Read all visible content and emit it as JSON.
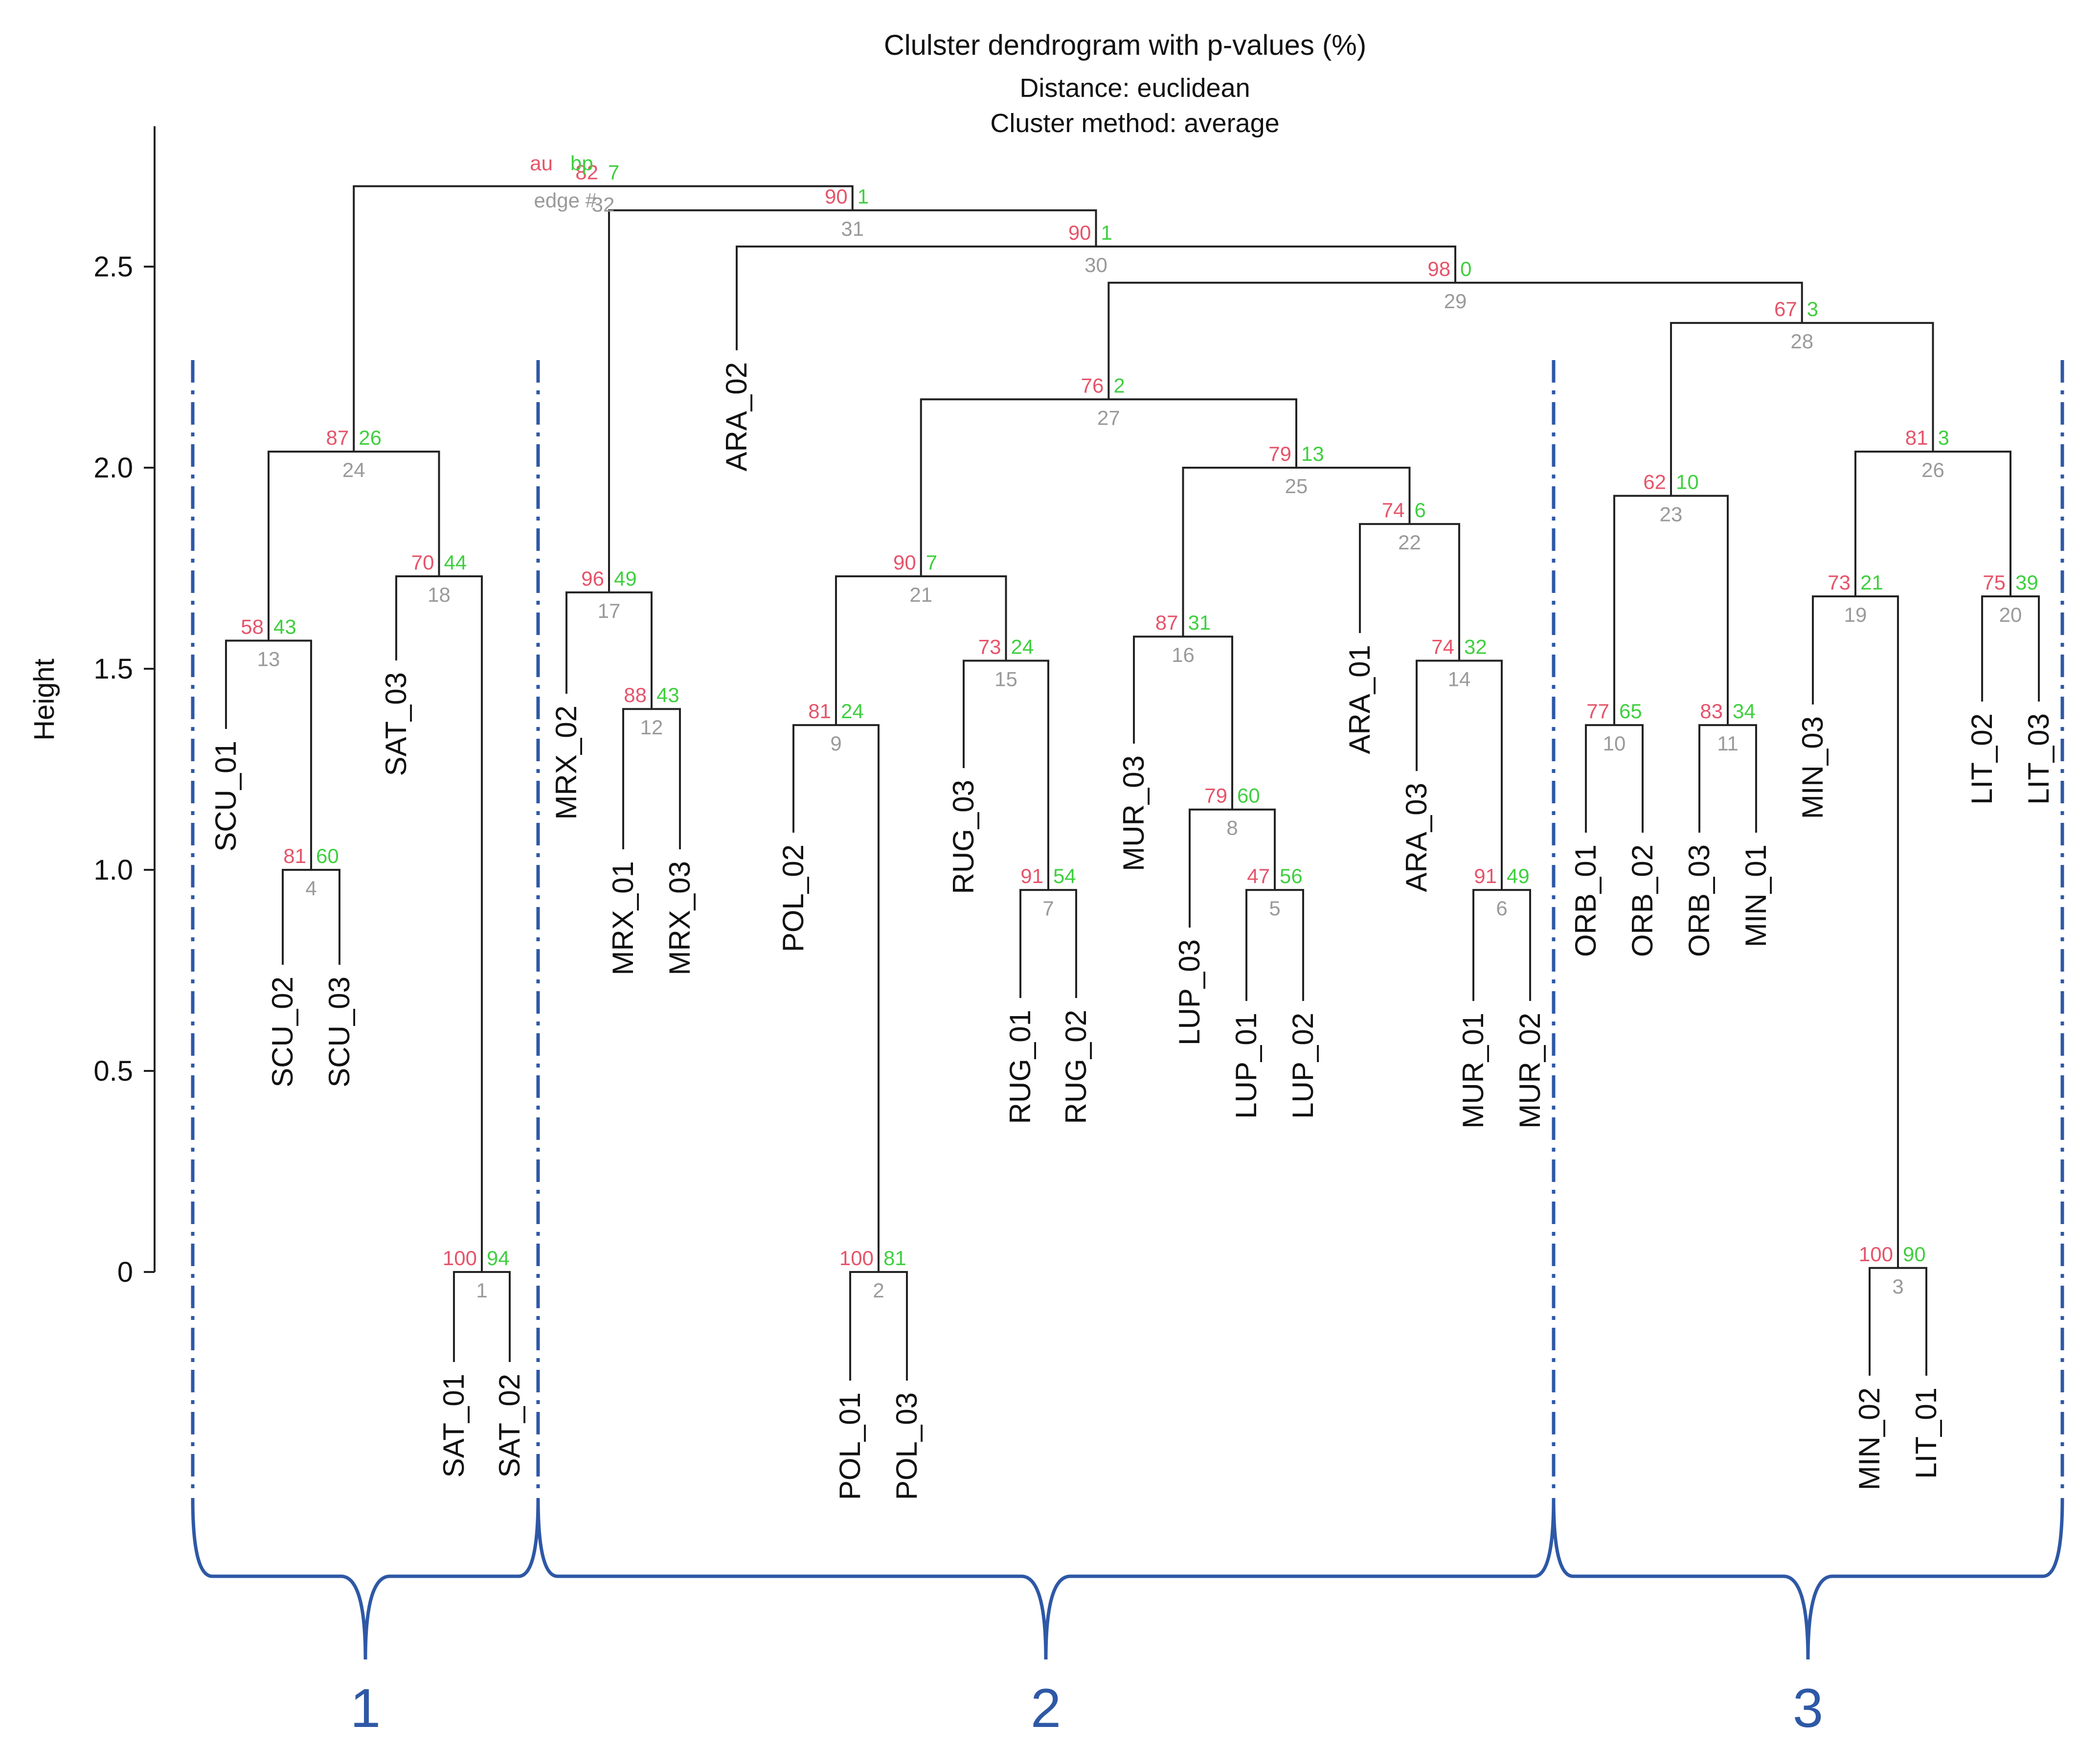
{
  "chart_data": {
    "type": "dendrogram",
    "title": "Clulster dendrogram with p-values (%)",
    "subtitle1": "Distance: euclidean",
    "subtitle2": "Cluster method: average",
    "ylabel": "Height",
    "y_ticks": [
      "0",
      "0.5",
      "1.0",
      "1.5",
      "2.0",
      "2.5"
    ],
    "legend": {
      "au": "au",
      "bp": "bp",
      "edge": "edge #"
    },
    "leaves": [
      "SCU_01",
      "SCU_02",
      "SCU_03",
      "SAT_03",
      "SAT_01",
      "SAT_02",
      "MRX_02",
      "MRX_01",
      "MRX_03",
      "ARA_02",
      "POL_02",
      "POL_01",
      "POL_03",
      "RUG_03",
      "RUG_01",
      "RUG_02",
      "MUR_03",
      "LUP_03",
      "LUP_01",
      "LUP_02",
      "ARA_01",
      "ARA_03",
      "MUR_01",
      "MUR_02",
      "ORB_01",
      "ORB_02",
      "ORB_03",
      "MIN_01",
      "MIN_03",
      "MIN_02",
      "LIT_01",
      "LIT_02",
      "LIT_03"
    ],
    "merges": [
      {
        "edge": "1",
        "au": "100",
        "bp": "94",
        "height": 0.0,
        "left": "SAT_01",
        "right": "SAT_02"
      },
      {
        "edge": "2",
        "au": "100",
        "bp": "81",
        "height": 0.0,
        "left": "POL_01",
        "right": "POL_03"
      },
      {
        "edge": "3",
        "au": "100",
        "bp": "90",
        "height": 0.01,
        "left": "MIN_02",
        "right": "LIT_01"
      },
      {
        "edge": "4",
        "au": "81",
        "bp": "60",
        "height": 1.0,
        "left": "SCU_02",
        "right": "SCU_03"
      },
      {
        "edge": "5",
        "au": "47",
        "bp": "56",
        "height": 0.95,
        "left": "LUP_01",
        "right": "LUP_02"
      },
      {
        "edge": "6",
        "au": "91",
        "bp": "49",
        "height": 0.95,
        "left": "MUR_01",
        "right": "MUR_02"
      },
      {
        "edge": "7",
        "au": "91",
        "bp": "54",
        "height": 0.95,
        "left": "RUG_01",
        "right": "RUG_02"
      },
      {
        "edge": "8",
        "au": "79",
        "bp": "60",
        "height": 1.15,
        "left": "LUP_03",
        "right": "5"
      },
      {
        "edge": "9",
        "au": "81",
        "bp": "24",
        "height": 1.36,
        "left": "POL_02",
        "right": "2"
      },
      {
        "edge": "10",
        "au": "77",
        "bp": "65",
        "height": 1.36,
        "left": "ORB_01",
        "right": "ORB_02"
      },
      {
        "edge": "11",
        "au": "83",
        "bp": "34",
        "height": 1.36,
        "left": "ORB_03",
        "right": "MIN_01"
      },
      {
        "edge": "12",
        "au": "88",
        "bp": "43",
        "height": 1.4,
        "left": "MRX_01",
        "right": "MRX_03"
      },
      {
        "edge": "13",
        "au": "58",
        "bp": "43",
        "height": 1.57,
        "left": "SCU_01",
        "right": "4"
      },
      {
        "edge": "14",
        "au": "74",
        "bp": "32",
        "height": 1.52,
        "left": "ARA_03",
        "right": "6"
      },
      {
        "edge": "15",
        "au": "73",
        "bp": "24",
        "height": 1.52,
        "left": "RUG_03",
        "right": "7"
      },
      {
        "edge": "16",
        "au": "87",
        "bp": "31",
        "height": 1.58,
        "left": "MUR_03",
        "right": "8"
      },
      {
        "edge": "17",
        "au": "96",
        "bp": "49",
        "height": 1.69,
        "left": "MRX_02",
        "right": "12"
      },
      {
        "edge": "18",
        "au": "70",
        "bp": "44",
        "height": 1.73,
        "left": "SAT_03",
        "right": "1"
      },
      {
        "edge": "19",
        "au": "73",
        "bp": "21",
        "height": 1.68,
        "left": "MIN_03",
        "right": "3"
      },
      {
        "edge": "20",
        "au": "75",
        "bp": "39",
        "height": 1.68,
        "left": "LIT_02",
        "right": "LIT_03"
      },
      {
        "edge": "21",
        "au": "90",
        "bp": "7",
        "height": 1.73,
        "left": "9",
        "right": "15"
      },
      {
        "edge": "22",
        "au": "74",
        "bp": "6",
        "height": 1.86,
        "left": "ARA_01",
        "right": "14"
      },
      {
        "edge": "23",
        "au": "62",
        "bp": "10",
        "height": 1.93,
        "left": "10",
        "right": "11"
      },
      {
        "edge": "24",
        "au": "87",
        "bp": "26",
        "height": 2.04,
        "left": "13",
        "right": "18"
      },
      {
        "edge": "25",
        "au": "79",
        "bp": "13",
        "height": 2.0,
        "left": "16",
        "right": "22"
      },
      {
        "edge": "26",
        "au": "81",
        "bp": "3",
        "height": 2.04,
        "left": "19",
        "right": "20"
      },
      {
        "edge": "27",
        "au": "76",
        "bp": "2",
        "height": 2.17,
        "left": "21",
        "right": "25"
      },
      {
        "edge": "28",
        "au": "67",
        "bp": "3",
        "height": 2.36,
        "left": "23",
        "right": "26"
      },
      {
        "edge": "29",
        "au": "98",
        "bp": "0",
        "height": 2.46,
        "left": "27",
        "right": "28"
      },
      {
        "edge": "30",
        "au": "90",
        "bp": "1",
        "height": 2.55,
        "left": "ARA_02",
        "right": "29"
      },
      {
        "edge": "31",
        "au": "90",
        "bp": "1",
        "height": 2.64,
        "left": "17",
        "right": "30"
      },
      {
        "edge": "32",
        "au": "82",
        "bp": "7",
        "height": 2.7,
        "left": "24",
        "right": "31"
      }
    ],
    "clusters": [
      {
        "label": "1",
        "members": [
          "SCU_01",
          "SCU_02",
          "SCU_03",
          "SAT_03",
          "SAT_01",
          "SAT_02"
        ]
      },
      {
        "label": "2",
        "members": [
          "MRX_02",
          "MRX_01",
          "MRX_03",
          "ARA_02",
          "POL_02",
          "POL_01",
          "POL_03",
          "RUG_03",
          "RUG_01",
          "RUG_02",
          "MUR_03",
          "LUP_03",
          "LUP_01",
          "LUP_02",
          "ARA_01",
          "ARA_03",
          "MUR_01",
          "MUR_02"
        ]
      },
      {
        "label": "3",
        "members": [
          "ORB_01",
          "ORB_02",
          "ORB_03",
          "MIN_01",
          "MIN_03",
          "MIN_02",
          "LIT_01",
          "LIT_02",
          "LIT_03"
        ]
      }
    ],
    "colors": {
      "au": "#e5546a",
      "bp": "#3fcf3f",
      "edge": "#9a9a9a",
      "cluster": "#2e58a6",
      "branch": "#222222"
    }
  }
}
